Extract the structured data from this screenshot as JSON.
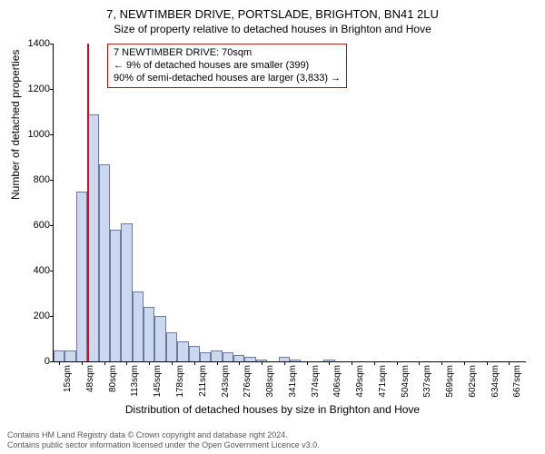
{
  "title": "7, NEWTIMBER DRIVE, PORTSLADE, BRIGHTON, BN41 2LU",
  "subtitle": "Size of property relative to detached houses in Brighton and Hove",
  "annotation": {
    "line1": "7 NEWTIMBER DRIVE: 70sqm",
    "line2": "← 9% of detached houses are smaller (399)",
    "line3": "90% of semi-detached houses are larger (3,833) →"
  },
  "chart": {
    "type": "histogram",
    "ylabel": "Number of detached properties",
    "xlabel": "Distribution of detached houses by size in Brighton and Hove",
    "ylim": [
      0,
      1400
    ],
    "ytick_step": 200,
    "xtick_labels": [
      "15sqm",
      "48sqm",
      "80sqm",
      "113sqm",
      "145sqm",
      "178sqm",
      "211sqm",
      "243sqm",
      "276sqm",
      "308sqm",
      "341sqm",
      "374sqm",
      "406sqm",
      "439sqm",
      "471sqm",
      "504sqm",
      "537sqm",
      "569sqm",
      "602sqm",
      "634sqm",
      "667sqm"
    ],
    "bar_values": [
      50,
      50,
      750,
      1090,
      870,
      580,
      610,
      310,
      240,
      200,
      130,
      90,
      70,
      40,
      50,
      40,
      30,
      20,
      10,
      0,
      20,
      10,
      0,
      0,
      10,
      0,
      0,
      0,
      0,
      0,
      0,
      0,
      0,
      0,
      0,
      0,
      0,
      0,
      0,
      0,
      0,
      0
    ],
    "bar_fill": "#ccd8ef",
    "bar_stroke": "#6a7aa0",
    "marker_color": "#c8102e",
    "marker_bin_index": 3,
    "background_color": "#ffffff",
    "axis_color": "#000000",
    "label_fontsize": 12,
    "tick_fontsize": 11
  },
  "footer": {
    "line1": "Contains HM Land Registry data © Crown copyright and database right 2024.",
    "line2": "Contains public sector information licensed under the Open Government Licence v3.0."
  }
}
